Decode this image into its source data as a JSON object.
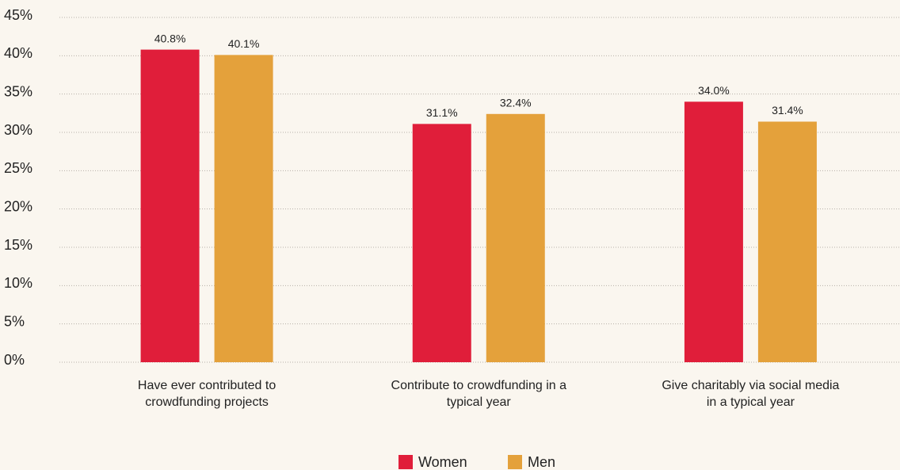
{
  "chart_data": {
    "type": "bar",
    "categories": [
      "Have ever contributed to crowdfunding projects",
      "Contribute to crowdfunding in a typical year",
      "Give charitably via social media in a typical year"
    ],
    "series": [
      {
        "name": "Women",
        "color": "#e01e3a",
        "values": [
          40.8,
          31.1,
          34.0
        ],
        "value_labels": [
          "40.8%",
          "31.1%",
          "34.0%"
        ]
      },
      {
        "name": "Men",
        "color": "#e4a13b",
        "values": [
          40.1,
          32.4,
          31.4
        ],
        "value_labels": [
          "40.1%",
          "32.4%",
          "31.4%"
        ]
      }
    ],
    "ylim": [
      0,
      45
    ],
    "yticks": [
      {
        "value": 0,
        "label": "0%"
      },
      {
        "value": 5,
        "label": "5%"
      },
      {
        "value": 10,
        "label": "10%"
      },
      {
        "value": 15,
        "label": "15%"
      },
      {
        "value": 20,
        "label": "20%"
      },
      {
        "value": 25,
        "label": "25%"
      },
      {
        "value": 30,
        "label": "30%"
      },
      {
        "value": 35,
        "label": "35%"
      },
      {
        "value": 40,
        "label": "40%"
      },
      {
        "value": 45,
        "label": "45%"
      }
    ],
    "grid": true,
    "legend": "bottom"
  }
}
